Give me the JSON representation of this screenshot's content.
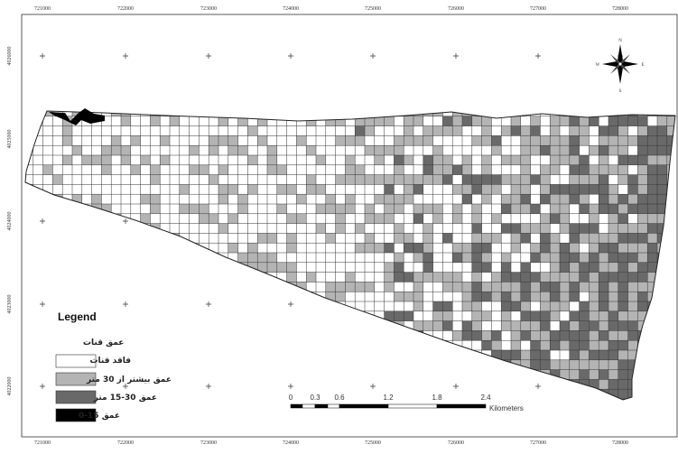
{
  "map": {
    "x_ticks": [
      "721000",
      "722000",
      "723000",
      "724000",
      "725000",
      "726000",
      "727000",
      "728000"
    ],
    "y_ticks": [
      "4026000",
      "4025000",
      "4024000",
      "4023000",
      "4022000"
    ],
    "north_arrow": {
      "n": "N",
      "s": "S",
      "e": "E",
      "w": "W"
    },
    "legend": {
      "title": "Legend",
      "subtitle": "عمق قنات",
      "items": [
        {
          "label": "فاقد قنات",
          "color": "#ffffff"
        },
        {
          "label": "عمق بیشتر از 30 متر",
          "color": "#b4b4b4"
        },
        {
          "label": "عمق 30-15 متر",
          "color": "#696969"
        },
        {
          "label": "عمق 15-0",
          "color": "#000000"
        }
      ]
    },
    "scale_bar": {
      "labels": [
        "0",
        "0.3",
        "0.6",
        "1.2",
        "1.8",
        "2.4"
      ],
      "unit": "Kilometers"
    }
  }
}
